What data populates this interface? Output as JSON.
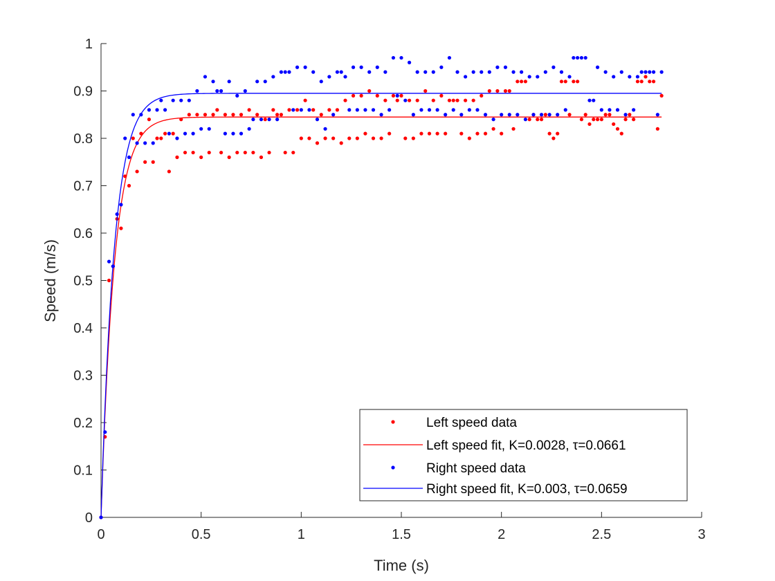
{
  "chart_data": {
    "type": "scatter",
    "title": "",
    "xlabel": "Time (s)",
    "ylabel": "Speed (m/s)",
    "xlim": [
      0,
      3
    ],
    "ylim": [
      0,
      1
    ],
    "x_ticks": [
      "0",
      "0.5",
      "1",
      "1.5",
      "2",
      "2.5",
      "3"
    ],
    "y_ticks": [
      "0",
      "0.1",
      "0.2",
      "0.3",
      "0.4",
      "0.5",
      "0.6",
      "0.7",
      "0.8",
      "0.9",
      "1"
    ],
    "grid": false,
    "legend_position": "bottom-right",
    "colors": {
      "left": "#ff0000",
      "right": "#0000ff",
      "axis": "#262626"
    },
    "series": [
      {
        "name": "Left speed data",
        "kind": "points",
        "color": "#ff0000",
        "x": [
          0,
          0.02,
          0.04,
          0.06,
          0.08,
          0.1,
          0.12,
          0.14,
          0.16,
          0.18,
          0.2,
          0.22,
          0.24,
          0.26,
          0.28,
          0.3,
          0.32,
          0.34,
          0.36,
          0.38,
          0.4,
          0.42,
          0.44,
          0.46,
          0.48,
          0.5,
          0.52,
          0.54,
          0.56,
          0.58,
          0.6,
          0.62,
          0.64,
          0.66,
          0.68,
          0.7,
          0.72,
          0.74,
          0.76,
          0.78,
          0.8,
          0.82,
          0.84,
          0.86,
          0.88,
          0.9,
          0.92,
          0.94,
          0.96,
          0.98,
          1.0,
          1.02,
          1.04,
          1.06,
          1.08,
          1.1,
          1.12,
          1.14,
          1.16,
          1.18,
          1.2,
          1.22,
          1.24,
          1.26,
          1.28,
          1.3,
          1.32,
          1.34,
          1.36,
          1.38,
          1.4,
          1.42,
          1.44,
          1.46,
          1.48,
          1.5,
          1.52,
          1.54,
          1.56,
          1.58,
          1.6,
          1.62,
          1.64,
          1.66,
          1.68,
          1.7,
          1.72,
          1.74,
          1.76,
          1.78,
          1.8,
          1.82,
          1.84,
          1.86,
          1.88,
          1.9,
          1.92,
          1.94,
          1.96,
          1.98,
          2.0,
          2.02,
          2.04,
          2.06,
          2.08,
          2.1,
          2.12,
          2.14,
          2.16,
          2.18,
          2.2,
          2.22,
          2.24,
          2.26,
          2.28,
          2.3,
          2.32,
          2.34,
          2.36,
          2.38,
          2.4,
          2.42,
          2.44,
          2.46,
          2.48,
          2.5,
          2.52,
          2.54,
          2.56,
          2.58,
          2.6,
          2.62,
          2.64,
          2.66,
          2.68,
          2.7,
          2.72,
          2.74,
          2.76,
          2.78,
          2.8
        ],
        "y": [
          0,
          0.17,
          0.5,
          0.53,
          0.63,
          0.61,
          0.72,
          0.7,
          0.8,
          0.73,
          0.81,
          0.75,
          0.84,
          0.75,
          0.8,
          0.8,
          0.81,
          0.73,
          0.81,
          0.76,
          0.84,
          0.77,
          0.85,
          0.77,
          0.85,
          0.76,
          0.85,
          0.77,
          0.85,
          0.86,
          0.77,
          0.85,
          0.76,
          0.85,
          0.77,
          0.85,
          0.77,
          0.86,
          0.77,
          0.85,
          0.76,
          0.84,
          0.77,
          0.86,
          0.85,
          0.85,
          0.77,
          0.86,
          0.77,
          0.86,
          0.8,
          0.88,
          0.8,
          0.86,
          0.79,
          0.85,
          0.8,
          0.86,
          0.8,
          0.86,
          0.79,
          0.88,
          0.8,
          0.89,
          0.8,
          0.89,
          0.81,
          0.9,
          0.8,
          0.89,
          0.8,
          0.88,
          0.81,
          0.89,
          0.88,
          0.89,
          0.8,
          0.88,
          0.8,
          0.88,
          0.81,
          0.9,
          0.81,
          0.88,
          0.81,
          0.89,
          0.81,
          0.88,
          0.88,
          0.88,
          0.81,
          0.88,
          0.8,
          0.88,
          0.81,
          0.89,
          0.81,
          0.9,
          0.82,
          0.9,
          0.81,
          0.9,
          0.9,
          0.82,
          0.92,
          0.92,
          0.92,
          0.84,
          0.85,
          0.84,
          0.84,
          0.85,
          0.81,
          0.8,
          0.81,
          0.92,
          0.92,
          0.85,
          0.92,
          0.92,
          0.84,
          0.85,
          0.83,
          0.84,
          0.84,
          0.84,
          0.85,
          0.85,
          0.83,
          0.82,
          0.81,
          0.84,
          0.85,
          0.84,
          0.92,
          0.92,
          0.93,
          0.92,
          0.92,
          0.82,
          0.89
        ]
      },
      {
        "name": "Left speed fit, K=0.0028, τ=0.0661",
        "kind": "fit",
        "color": "#ff0000",
        "steady_state": 0.845,
        "tau": 0.0661,
        "x_range": [
          0,
          2.8
        ]
      },
      {
        "name": "Right speed data",
        "kind": "points",
        "color": "#0000ff",
        "x": [
          0,
          0.02,
          0.04,
          0.06,
          0.08,
          0.1,
          0.12,
          0.14,
          0.16,
          0.18,
          0.2,
          0.22,
          0.24,
          0.26,
          0.28,
          0.3,
          0.32,
          0.34,
          0.36,
          0.38,
          0.4,
          0.42,
          0.44,
          0.46,
          0.48,
          0.5,
          0.52,
          0.54,
          0.56,
          0.58,
          0.6,
          0.62,
          0.64,
          0.66,
          0.68,
          0.7,
          0.72,
          0.74,
          0.76,
          0.78,
          0.8,
          0.82,
          0.84,
          0.86,
          0.88,
          0.9,
          0.92,
          0.94,
          0.96,
          0.98,
          1.0,
          1.02,
          1.04,
          1.06,
          1.08,
          1.1,
          1.12,
          1.14,
          1.16,
          1.18,
          1.2,
          1.22,
          1.24,
          1.26,
          1.28,
          1.3,
          1.32,
          1.34,
          1.36,
          1.38,
          1.4,
          1.42,
          1.44,
          1.46,
          1.48,
          1.5,
          1.52,
          1.54,
          1.56,
          1.58,
          1.6,
          1.62,
          1.64,
          1.66,
          1.68,
          1.7,
          1.72,
          1.74,
          1.76,
          1.78,
          1.8,
          1.82,
          1.84,
          1.86,
          1.88,
          1.9,
          1.92,
          1.94,
          1.96,
          1.98,
          2.0,
          2.02,
          2.04,
          2.06,
          2.08,
          2.1,
          2.12,
          2.14,
          2.16,
          2.18,
          2.2,
          2.22,
          2.24,
          2.26,
          2.28,
          2.3,
          2.32,
          2.34,
          2.36,
          2.38,
          2.4,
          2.42,
          2.44,
          2.46,
          2.48,
          2.5,
          2.52,
          2.54,
          2.56,
          2.58,
          2.6,
          2.62,
          2.64,
          2.66,
          2.68,
          2.7,
          2.72,
          2.74,
          2.76,
          2.78,
          2.8
        ],
        "y": [
          0,
          0.18,
          0.54,
          0.53,
          0.64,
          0.66,
          0.8,
          0.76,
          0.85,
          0.79,
          0.85,
          0.79,
          0.86,
          0.79,
          0.86,
          0.88,
          0.86,
          0.81,
          0.88,
          0.8,
          0.88,
          0.81,
          0.88,
          0.81,
          0.9,
          0.82,
          0.93,
          0.82,
          0.92,
          0.9,
          0.9,
          0.81,
          0.92,
          0.81,
          0.89,
          0.81,
          0.9,
          0.82,
          0.84,
          0.92,
          0.84,
          0.92,
          0.84,
          0.93,
          0.84,
          0.94,
          0.94,
          0.94,
          0.86,
          0.95,
          0.86,
          0.95,
          0.86,
          0.94,
          0.84,
          0.92,
          0.82,
          0.93,
          0.85,
          0.94,
          0.94,
          0.93,
          0.86,
          0.95,
          0.86,
          0.95,
          0.86,
          0.94,
          0.86,
          0.95,
          0.85,
          0.94,
          0.86,
          0.97,
          0.89,
          0.97,
          0.88,
          0.96,
          0.85,
          0.94,
          0.86,
          0.94,
          0.86,
          0.94,
          0.86,
          0.95,
          0.85,
          0.97,
          0.86,
          0.94,
          0.85,
          0.93,
          0.86,
          0.94,
          0.86,
          0.94,
          0.85,
          0.94,
          0.84,
          0.95,
          0.85,
          0.95,
          0.85,
          0.94,
          0.85,
          0.94,
          0.84,
          0.93,
          0.85,
          0.93,
          0.85,
          0.94,
          0.85,
          0.95,
          0.85,
          0.94,
          0.86,
          0.93,
          0.97,
          0.97,
          0.97,
          0.97,
          0.88,
          0.88,
          0.95,
          0.86,
          0.94,
          0.86,
          0.93,
          0.86,
          0.94,
          0.85,
          0.93,
          0.86,
          0.93,
          0.94,
          0.94,
          0.94,
          0.94,
          0.85,
          0.94
        ]
      },
      {
        "name": "Right speed fit, K=0.003, τ=0.0659",
        "kind": "fit",
        "color": "#0000ff",
        "steady_state": 0.895,
        "tau": 0.0659,
        "x_range": [
          0,
          2.8
        ]
      }
    ],
    "legend": {
      "entries": [
        {
          "label": "Left speed data",
          "marker": "dot",
          "color": "#ff0000"
        },
        {
          "label": "Left speed fit, K=0.0028, τ=0.0661",
          "marker": "line",
          "color": "#ff0000"
        },
        {
          "label": "Right speed data",
          "marker": "dot",
          "color": "#0000ff"
        },
        {
          "label": "Right speed fit, K=0.003, τ=0.0659",
          "marker": "line",
          "color": "#0000ff"
        }
      ]
    }
  }
}
